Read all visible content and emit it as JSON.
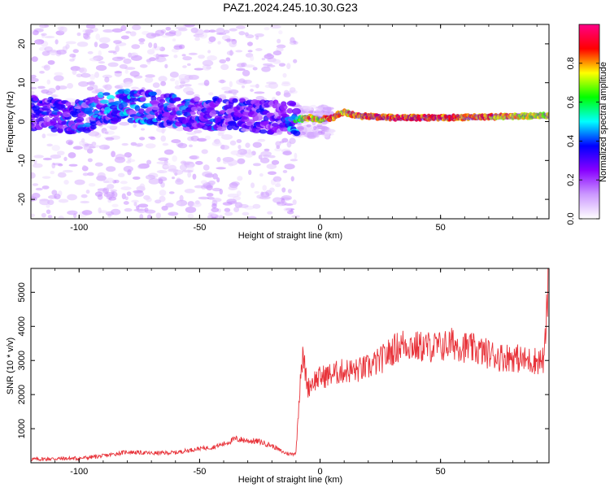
{
  "title": "PAZ1.2024.245.10.30.G23",
  "chart_data": [
    {
      "type": "heatmap",
      "xlabel": "Height of straight line (km)",
      "ylabel": "Frequency (Hz)",
      "xlim": [
        -120,
        95
      ],
      "ylim": [
        -25,
        25
      ],
      "x_ticks": [
        -100,
        -50,
        0,
        50
      ],
      "y_ticks": [
        -20,
        -10,
        0,
        10,
        20
      ],
      "colorbar": {
        "label": "Normalized spectral amplitude",
        "range": [
          0,
          1
        ],
        "ticks": [
          "0.0",
          "0.2",
          "0.4",
          "0.6",
          "0.8"
        ],
        "colormap": [
          "#ffffff",
          "#cc99ff",
          "#8800ff",
          "#0000ff",
          "#00ffff",
          "#00ff00",
          "#ffff00",
          "#ff0000",
          "#ff0088"
        ]
      },
      "ridge": {
        "x": [
          -115,
          -105,
          -95,
          -85,
          -75,
          -65,
          -55,
          -45,
          -35,
          -25,
          -15,
          -10,
          -5,
          0,
          5,
          10,
          15,
          30,
          50,
          70,
          90
        ],
        "frequency": [
          2,
          1,
          2,
          4,
          4,
          3,
          2,
          2,
          2,
          1,
          1,
          0.5,
          1,
          0.5,
          1,
          2.5,
          1.5,
          1,
          1,
          1.2,
          1.5
        ],
        "amplitude": [
          0.3,
          0.35,
          0.35,
          0.4,
          0.4,
          0.35,
          0.35,
          0.35,
          0.3,
          0.3,
          0.25,
          0.5,
          0.85,
          0.75,
          0.9,
          0.8,
          0.9,
          0.9,
          0.9,
          0.85,
          0.75
        ]
      }
    },
    {
      "type": "line",
      "xlabel": "Height of straight line (km)",
      "ylabel": "SNR (10 * v/v)",
      "xlim": [
        -120,
        95
      ],
      "ylim": [
        0,
        5700
      ],
      "x_ticks": [
        -100,
        -50,
        0,
        50
      ],
      "y_ticks": [
        1000,
        2000,
        3000,
        4000,
        5000
      ],
      "color": "#e8333a",
      "x": [
        -120,
        -110,
        -100,
        -90,
        -80,
        -70,
        -60,
        -50,
        -45,
        -40,
        -35,
        -30,
        -25,
        -20,
        -15,
        -12,
        -10,
        -9,
        -8,
        -7,
        -6,
        -5,
        -3,
        0,
        5,
        10,
        15,
        20,
        25,
        30,
        35,
        40,
        45,
        50,
        55,
        60,
        65,
        70,
        75,
        80,
        85,
        90,
        93,
        95
      ],
      "y": [
        100,
        120,
        130,
        200,
        320,
        280,
        300,
        420,
        450,
        550,
        700,
        650,
        620,
        500,
        300,
        250,
        300,
        1500,
        2800,
        3100,
        2600,
        2200,
        2400,
        2500,
        2600,
        2700,
        2700,
        2800,
        3000,
        3300,
        3500,
        3400,
        3400,
        3400,
        3500,
        3400,
        3300,
        3200,
        3100,
        3100,
        3000,
        3000,
        3000,
        5700
      ]
    }
  ]
}
